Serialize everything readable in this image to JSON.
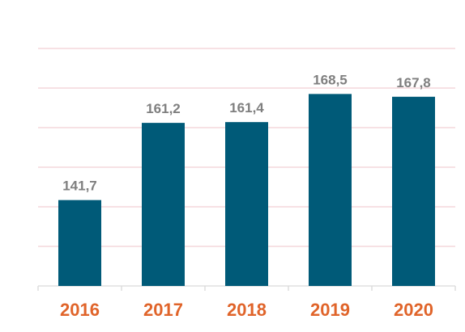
{
  "chart_data": {
    "type": "bar",
    "categories": [
      "2016",
      "2017",
      "2018",
      "2019",
      "2020"
    ],
    "values": [
      141.7,
      161.2,
      161.4,
      168.5,
      167.8
    ],
    "value_labels": [
      "141,7",
      "161,2",
      "161,4",
      "168,5",
      "167,8"
    ],
    "title": "",
    "xlabel": "",
    "ylabel": "",
    "ylim": [
      120,
      180
    ],
    "grid": true,
    "y_tick_labels_shown": false,
    "legend": "none"
  },
  "colors": {
    "bar": "#005a78",
    "value_label": "#7f7f7f",
    "category_label": "#e0642a",
    "gridline": "#f2cfd3",
    "axis": "#d9d9d9"
  }
}
